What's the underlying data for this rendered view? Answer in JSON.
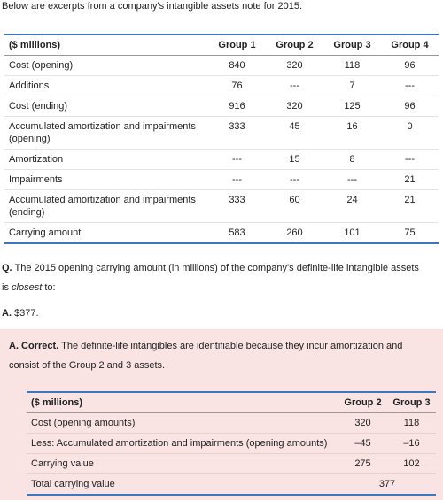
{
  "intro": "Below are excerpts from a company's intangible assets note for 2015:",
  "table1": {
    "header": [
      "($ millions)",
      "Group 1",
      "Group 2",
      "Group 3",
      "Group 4"
    ],
    "rows": [
      [
        "Cost (opening)",
        "840",
        "320",
        "118",
        "96"
      ],
      [
        "Additions",
        "76",
        "---",
        "7",
        "---"
      ],
      [
        "Cost (ending)",
        "916",
        "320",
        "125",
        "96"
      ],
      [
        "Accumulated amortization and impairments (opening)",
        "333",
        "45",
        "16",
        "0"
      ],
      [
        "Amortization",
        "---",
        "15",
        "8",
        "---"
      ],
      [
        "Impairments",
        "---",
        "---",
        "---",
        "21"
      ],
      [
        "Accumulated amortization and impairments (ending)",
        "333",
        "60",
        "24",
        "21"
      ],
      [
        "Carrying amount",
        "583",
        "260",
        "101",
        "75"
      ]
    ]
  },
  "question": {
    "label": "Q.",
    "text_before": "The 2015 opening carrying amount (in millions) of the company's definite-life intangible assets is",
    "emphasis": "closest",
    "text_after": "to:"
  },
  "answer": {
    "label": "A.",
    "text": "$377."
  },
  "explanation": {
    "label": "A. Correct.",
    "text": "The definite-life intangibles are identifiable because they incur amortization and consist of the Group 2 and 3 assets.",
    "table": {
      "header": [
        "($ millions)",
        "Group 2",
        "Group 3"
      ],
      "rows": [
        [
          "Cost (opening amounts)",
          "320",
          "118"
        ],
        [
          "Less: Accumulated amortization and impairments (opening amounts)",
          "–45",
          "–16"
        ],
        [
          "Carrying value",
          "275",
          "102"
        ]
      ],
      "total": {
        "label": "Total carrying value",
        "value": "377"
      }
    }
  }
}
